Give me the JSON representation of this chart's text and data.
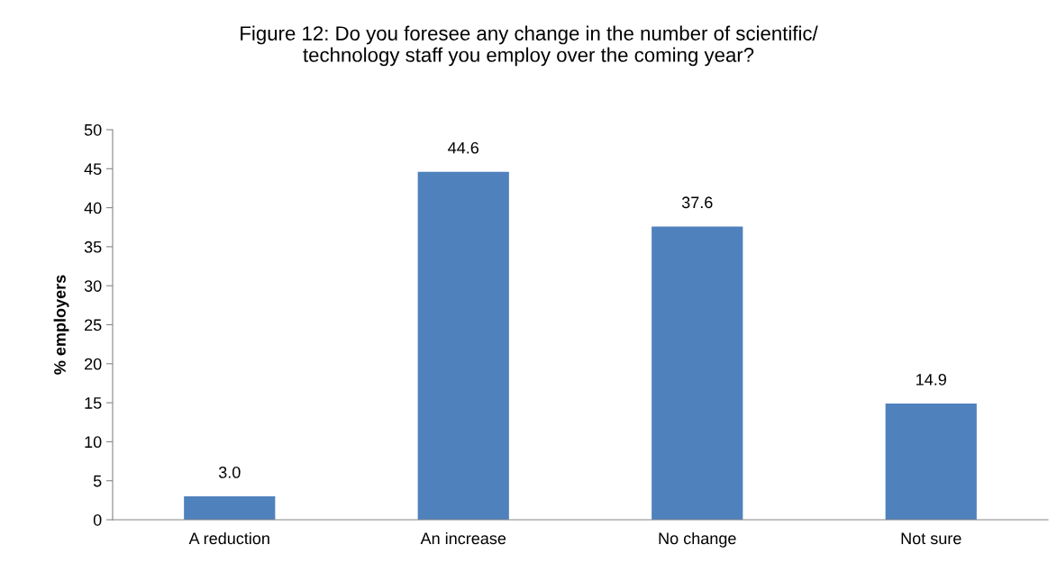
{
  "chart_data": {
    "type": "bar",
    "title": "Figure 12: Do you foresee any change in the number of scientific/\ntechnology staff you employ over the coming year?",
    "ylabel": "% employers",
    "categories": [
      "A reduction",
      "An increase",
      "No change",
      "Not sure"
    ],
    "values": [
      3.0,
      44.6,
      37.6,
      14.9
    ],
    "value_labels": [
      "3.0",
      "44.6",
      "37.6",
      "14.9"
    ],
    "color": "#4f81bd",
    "ylim": [
      0,
      50
    ],
    "yticks": [
      0,
      5,
      10,
      15,
      20,
      25,
      30,
      35,
      40,
      45,
      50
    ],
    "grid": false,
    "legend": false
  }
}
